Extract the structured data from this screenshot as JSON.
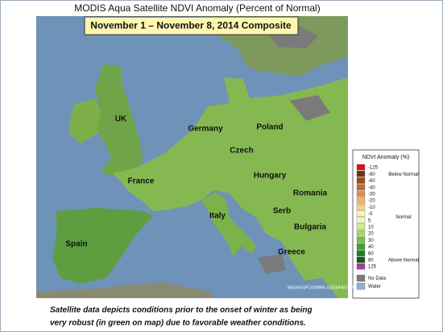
{
  "title": "MODIS Aqua Satellite NDVI Anomaly (Percent of Normal)",
  "subtitle": "November 1 – November 8, 2014 Composite",
  "map_labels": [
    "UK",
    "Germany",
    "Poland",
    "Czech",
    "France",
    "Hungary",
    "Romania",
    "Italy",
    "Serb",
    "Bulgaria",
    "Spain",
    "Greece"
  ],
  "legend": {
    "title": "NDVI Anomaly (%)",
    "entries": [
      {
        "label": "-125",
        "color": "#e01010"
      },
      {
        "label": "-80",
        "color": "#6b3418"
      },
      {
        "label": "-60",
        "color": "#9a4e22"
      },
      {
        "label": "-40",
        "color": "#c8682a"
      },
      {
        "label": "-30",
        "color": "#e48c48"
      },
      {
        "label": "-20",
        "color": "#f0b070"
      },
      {
        "label": "-10",
        "color": "#f6d28e"
      },
      {
        "label": "-5",
        "color": "#fff2b4"
      },
      {
        "label": "5",
        "color": "#eef8c4"
      },
      {
        "label": "10",
        "color": "#cdeb92"
      },
      {
        "label": "20",
        "color": "#a4d862"
      },
      {
        "label": "30",
        "color": "#74c040"
      },
      {
        "label": "40",
        "color": "#3ea030"
      },
      {
        "label": "60",
        "color": "#1f8020"
      },
      {
        "label": "80",
        "color": "#0e5e12"
      },
      {
        "label": "125",
        "color": "#a040a0"
      }
    ],
    "groups": [
      "Below Normal",
      "Normal",
      "Above Normal"
    ],
    "extras": [
      {
        "label": "No Data",
        "color": "#7a7a7a"
      },
      {
        "label": "Water",
        "color": "#8fb0d4"
      }
    ]
  },
  "credit": "NASA/GSFC/GIMMS USDA/FAS/IPAD",
  "caption": [
    "Satellite data depicts conditions prior to the onset of winter as being",
    "very robust (in green on map) due to favorable weather conditions."
  ]
}
